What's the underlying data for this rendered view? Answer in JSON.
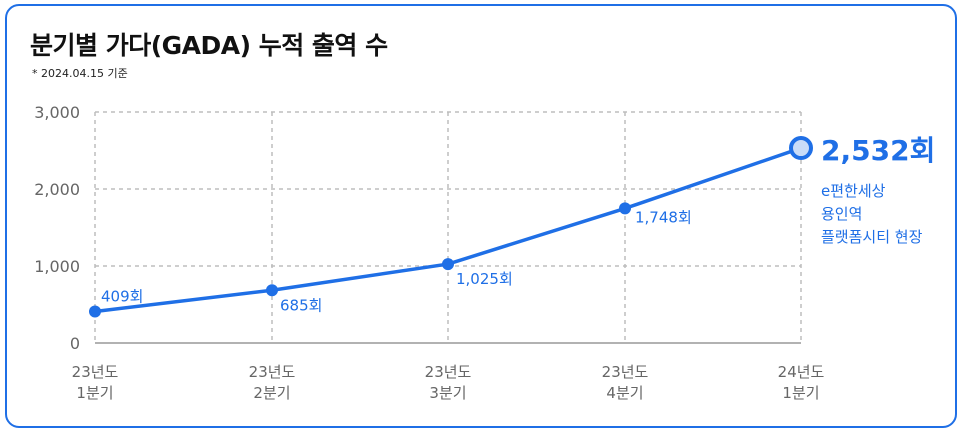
{
  "title": "분기별 가다(GADA) 누적 출역 수",
  "subtitle": "* 2024.04.15 기준",
  "colors": {
    "accent": "#1f6fe6",
    "grid": "#bdbdbd",
    "axis_text": "#666666",
    "frame": "#1f6fe6"
  },
  "chart_data": {
    "type": "line",
    "title": "분기별 가다(GADA) 누적 출역 수",
    "subtitle": "* 2024.04.15 기준",
    "categories": [
      [
        "23년도",
        "1분기"
      ],
      [
        "23년도",
        "2분기"
      ],
      [
        "23년도",
        "3분기"
      ],
      [
        "23년도",
        "4분기"
      ],
      [
        "24년도",
        "1분기"
      ]
    ],
    "values": [
      409,
      685,
      1025,
      1748,
      2532
    ],
    "data_labels": [
      "409회",
      "685회",
      "1,025회",
      "1,748회",
      "2,532회"
    ],
    "ylim": [
      0,
      3000
    ],
    "yticks": [
      0,
      1000,
      2000,
      3000
    ],
    "ytick_labels": [
      "0",
      "1,000",
      "2,000",
      "3,000"
    ],
    "grid": true,
    "annotation": [
      "e편한세상",
      "용인역",
      "플랫폼시티 현장"
    ]
  }
}
